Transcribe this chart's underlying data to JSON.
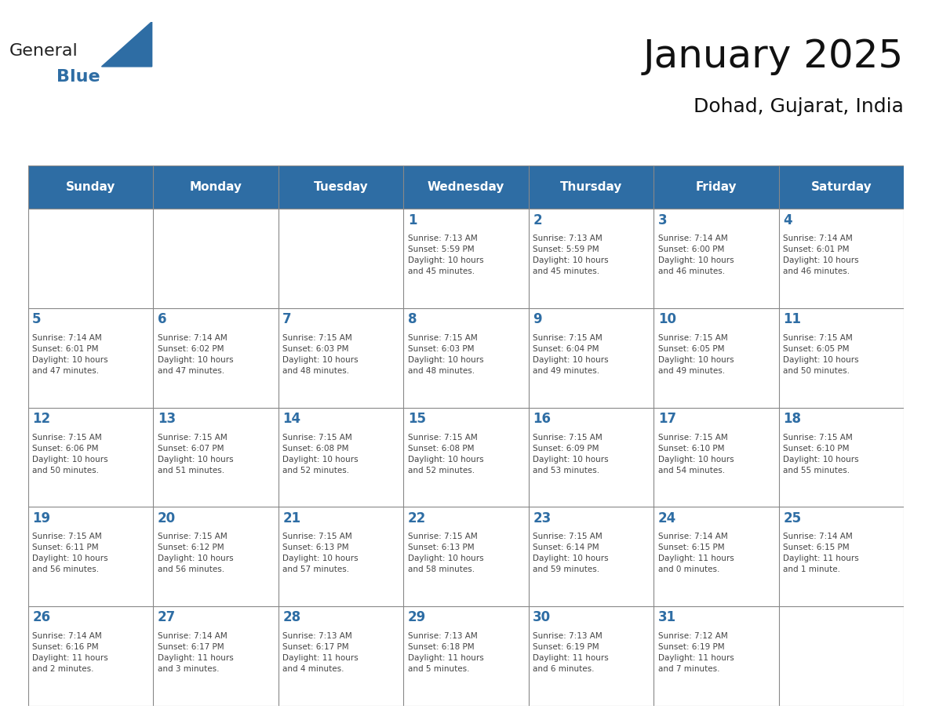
{
  "title": "January 2025",
  "subtitle": "Dohad, Gujarat, India",
  "header_color": "#2E6DA4",
  "header_text_color": "#FFFFFF",
  "cell_bg_color": "#FFFFFF",
  "grid_line_color": "#AAAAAA",
  "day_num_color": "#2E6DA4",
  "cell_text_color": "#444444",
  "days_of_week": [
    "Sunday",
    "Monday",
    "Tuesday",
    "Wednesday",
    "Thursday",
    "Friday",
    "Saturday"
  ],
  "weeks": [
    [
      {
        "day": "",
        "text": ""
      },
      {
        "day": "",
        "text": ""
      },
      {
        "day": "",
        "text": ""
      },
      {
        "day": "1",
        "text": "Sunrise: 7:13 AM\nSunset: 5:59 PM\nDaylight: 10 hours\nand 45 minutes."
      },
      {
        "day": "2",
        "text": "Sunrise: 7:13 AM\nSunset: 5:59 PM\nDaylight: 10 hours\nand 45 minutes."
      },
      {
        "day": "3",
        "text": "Sunrise: 7:14 AM\nSunset: 6:00 PM\nDaylight: 10 hours\nand 46 minutes."
      },
      {
        "day": "4",
        "text": "Sunrise: 7:14 AM\nSunset: 6:01 PM\nDaylight: 10 hours\nand 46 minutes."
      }
    ],
    [
      {
        "day": "5",
        "text": "Sunrise: 7:14 AM\nSunset: 6:01 PM\nDaylight: 10 hours\nand 47 minutes."
      },
      {
        "day": "6",
        "text": "Sunrise: 7:14 AM\nSunset: 6:02 PM\nDaylight: 10 hours\nand 47 minutes."
      },
      {
        "day": "7",
        "text": "Sunrise: 7:15 AM\nSunset: 6:03 PM\nDaylight: 10 hours\nand 48 minutes."
      },
      {
        "day": "8",
        "text": "Sunrise: 7:15 AM\nSunset: 6:03 PM\nDaylight: 10 hours\nand 48 minutes."
      },
      {
        "day": "9",
        "text": "Sunrise: 7:15 AM\nSunset: 6:04 PM\nDaylight: 10 hours\nand 49 minutes."
      },
      {
        "day": "10",
        "text": "Sunrise: 7:15 AM\nSunset: 6:05 PM\nDaylight: 10 hours\nand 49 minutes."
      },
      {
        "day": "11",
        "text": "Sunrise: 7:15 AM\nSunset: 6:05 PM\nDaylight: 10 hours\nand 50 minutes."
      }
    ],
    [
      {
        "day": "12",
        "text": "Sunrise: 7:15 AM\nSunset: 6:06 PM\nDaylight: 10 hours\nand 50 minutes."
      },
      {
        "day": "13",
        "text": "Sunrise: 7:15 AM\nSunset: 6:07 PM\nDaylight: 10 hours\nand 51 minutes."
      },
      {
        "day": "14",
        "text": "Sunrise: 7:15 AM\nSunset: 6:08 PM\nDaylight: 10 hours\nand 52 minutes."
      },
      {
        "day": "15",
        "text": "Sunrise: 7:15 AM\nSunset: 6:08 PM\nDaylight: 10 hours\nand 52 minutes."
      },
      {
        "day": "16",
        "text": "Sunrise: 7:15 AM\nSunset: 6:09 PM\nDaylight: 10 hours\nand 53 minutes."
      },
      {
        "day": "17",
        "text": "Sunrise: 7:15 AM\nSunset: 6:10 PM\nDaylight: 10 hours\nand 54 minutes."
      },
      {
        "day": "18",
        "text": "Sunrise: 7:15 AM\nSunset: 6:10 PM\nDaylight: 10 hours\nand 55 minutes."
      }
    ],
    [
      {
        "day": "19",
        "text": "Sunrise: 7:15 AM\nSunset: 6:11 PM\nDaylight: 10 hours\nand 56 minutes."
      },
      {
        "day": "20",
        "text": "Sunrise: 7:15 AM\nSunset: 6:12 PM\nDaylight: 10 hours\nand 56 minutes."
      },
      {
        "day": "21",
        "text": "Sunrise: 7:15 AM\nSunset: 6:13 PM\nDaylight: 10 hours\nand 57 minutes."
      },
      {
        "day": "22",
        "text": "Sunrise: 7:15 AM\nSunset: 6:13 PM\nDaylight: 10 hours\nand 58 minutes."
      },
      {
        "day": "23",
        "text": "Sunrise: 7:15 AM\nSunset: 6:14 PM\nDaylight: 10 hours\nand 59 minutes."
      },
      {
        "day": "24",
        "text": "Sunrise: 7:14 AM\nSunset: 6:15 PM\nDaylight: 11 hours\nand 0 minutes."
      },
      {
        "day": "25",
        "text": "Sunrise: 7:14 AM\nSunset: 6:15 PM\nDaylight: 11 hours\nand 1 minute."
      }
    ],
    [
      {
        "day": "26",
        "text": "Sunrise: 7:14 AM\nSunset: 6:16 PM\nDaylight: 11 hours\nand 2 minutes."
      },
      {
        "day": "27",
        "text": "Sunrise: 7:14 AM\nSunset: 6:17 PM\nDaylight: 11 hours\nand 3 minutes."
      },
      {
        "day": "28",
        "text": "Sunrise: 7:13 AM\nSunset: 6:17 PM\nDaylight: 11 hours\nand 4 minutes."
      },
      {
        "day": "29",
        "text": "Sunrise: 7:13 AM\nSunset: 6:18 PM\nDaylight: 11 hours\nand 5 minutes."
      },
      {
        "day": "30",
        "text": "Sunrise: 7:13 AM\nSunset: 6:19 PM\nDaylight: 11 hours\nand 6 minutes."
      },
      {
        "day": "31",
        "text": "Sunrise: 7:12 AM\nSunset: 6:19 PM\nDaylight: 11 hours\nand 7 minutes."
      },
      {
        "day": "",
        "text": ""
      }
    ]
  ],
  "logo_text_general": "General",
  "logo_text_blue": "Blue",
  "logo_general_color": "#222222",
  "logo_blue_color": "#2E6DA4",
  "logo_triangle_color": "#2E6DA4"
}
